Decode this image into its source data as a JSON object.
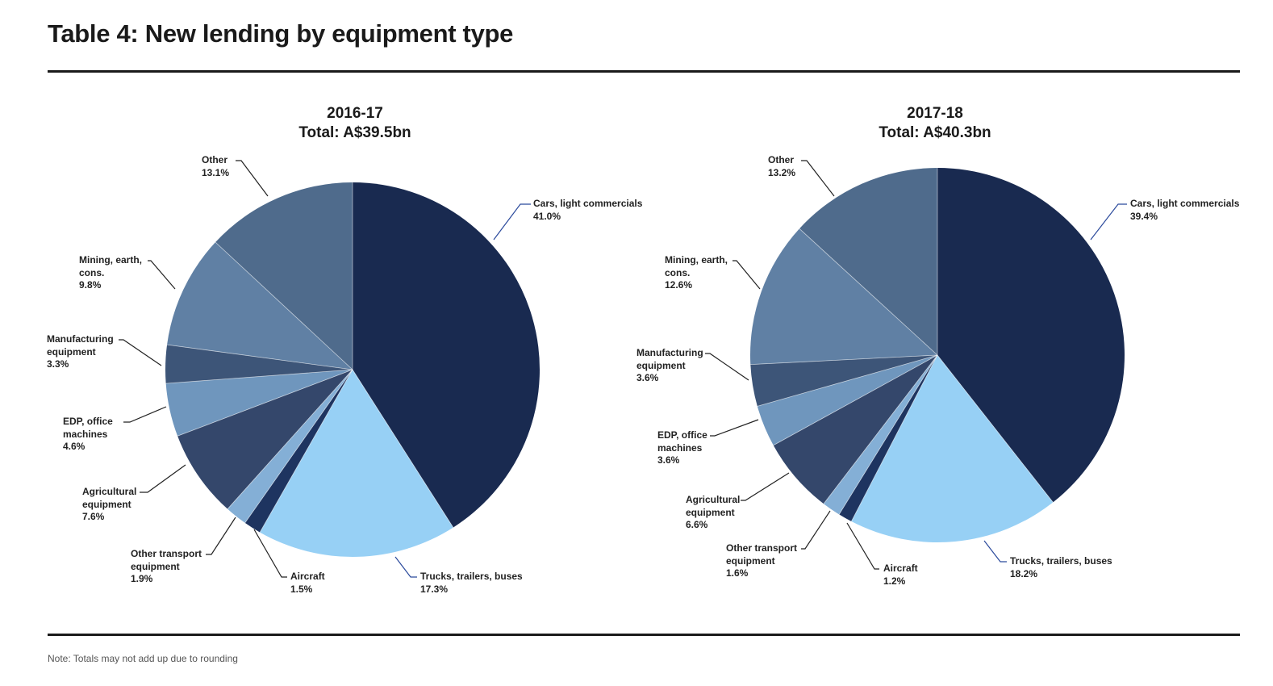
{
  "title": "Table 4: New lending by equipment type",
  "note": "Note: Totals may not add up due to rounding",
  "colors": {
    "Cars, light commercials": "#192a50",
    "Trucks, trailers, buses": "#97d0f5",
    "Aircraft": "#1e3460",
    "Other transport equipment": "#84afd6",
    "Agricultural equipment": "#34476b",
    "EDP, office machines": "#6f96bd",
    "Manufacturing equipment": "#3d5578",
    "Mining, earth, cons.": "#6080a4",
    "Other": "#4f6b8c"
  },
  "chart_data": [
    {
      "type": "pie",
      "title": "2016-17",
      "subtitle": "Total: A$39.5bn",
      "slices": [
        {
          "name": "Cars, light commercials",
          "label_lines": [
            "Cars, light commercials"
          ],
          "value": 41.0,
          "value_label": "41.0%"
        },
        {
          "name": "Trucks, trailers, buses",
          "label_lines": [
            "Trucks, trailers, buses"
          ],
          "value": 17.3,
          "value_label": "17.3%"
        },
        {
          "name": "Aircraft",
          "label_lines": [
            "Aircraft"
          ],
          "value": 1.5,
          "value_label": "1.5%"
        },
        {
          "name": "Other transport equipment",
          "label_lines": [
            "Other transport",
            "equipment"
          ],
          "value": 1.9,
          "value_label": "1.9%"
        },
        {
          "name": "Agricultural equipment",
          "label_lines": [
            "Agricultural",
            "equipment"
          ],
          "value": 7.6,
          "value_label": "7.6%"
        },
        {
          "name": "EDP, office machines",
          "label_lines": [
            "EDP, office",
            "machines"
          ],
          "value": 4.6,
          "value_label": "4.6%"
        },
        {
          "name": "Manufacturing equipment",
          "label_lines": [
            "Manufacturing",
            "equipment"
          ],
          "value": 3.3,
          "value_label": "3.3%"
        },
        {
          "name": "Mining, earth, cons.",
          "label_lines": [
            "Mining, earth,",
            "cons."
          ],
          "value": 9.8,
          "value_label": "9.8%"
        },
        {
          "name": "Other",
          "label_lines": [
            "Other"
          ],
          "value": 13.1,
          "value_label": "13.1%"
        }
      ]
    },
    {
      "type": "pie",
      "title": "2017-18",
      "subtitle": "Total: A$40.3bn",
      "slices": [
        {
          "name": "Cars, light commercials",
          "label_lines": [
            "Cars, light commercials"
          ],
          "value": 39.4,
          "value_label": "39.4%"
        },
        {
          "name": "Trucks, trailers, buses",
          "label_lines": [
            "Trucks, trailers, buses"
          ],
          "value": 18.2,
          "value_label": "18.2%"
        },
        {
          "name": "Aircraft",
          "label_lines": [
            "Aircraft"
          ],
          "value": 1.2,
          "value_label": "1.2%"
        },
        {
          "name": "Other transport equipment",
          "label_lines": [
            "Other transport",
            "equipment"
          ],
          "value": 1.6,
          "value_label": "1.6%"
        },
        {
          "name": "Agricultural equipment",
          "label_lines": [
            "Agricultural",
            "equipment"
          ],
          "value": 6.6,
          "value_label": "6.6%"
        },
        {
          "name": "EDP, office machines",
          "label_lines": [
            "EDP, office",
            "machines"
          ],
          "value": 3.6,
          "value_label": "3.6%"
        },
        {
          "name": "Manufacturing equipment",
          "label_lines": [
            "Manufacturing",
            "equipment"
          ],
          "value": 3.6,
          "value_label": "3.6%"
        },
        {
          "name": "Mining, earth, cons.",
          "label_lines": [
            "Mining, earth,",
            "cons."
          ],
          "value": 12.6,
          "value_label": "12.6%"
        },
        {
          "name": "Other",
          "label_lines": [
            "Other"
          ],
          "value": 13.2,
          "value_label": "13.2%"
        }
      ]
    }
  ]
}
